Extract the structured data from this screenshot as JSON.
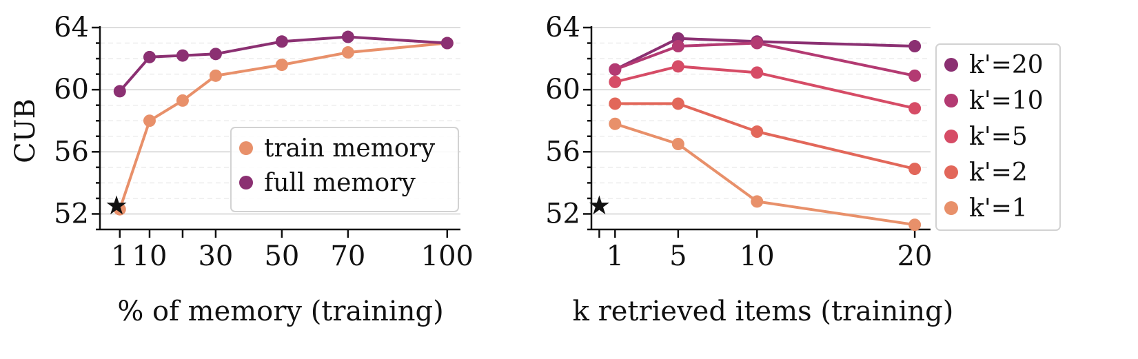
{
  "chart_data": [
    {
      "type": "line",
      "panel": "left",
      "title": "",
      "ylabel": "CUB",
      "xlabel": "% of memory (training)",
      "ylim": [
        51,
        64
      ],
      "yticks": [
        52,
        56,
        60,
        64
      ],
      "xlim": [
        -5,
        104
      ],
      "xticks": [
        1,
        10,
        20,
        30,
        50,
        70,
        100
      ],
      "xtick_labels": [
        "1",
        "10",
        "",
        "30",
        "50",
        "70",
        "100"
      ],
      "grid": true,
      "legend_position": "lower-right",
      "baseline_marker": {
        "symbol": "★",
        "x": 0,
        "y": 52.6
      },
      "series": [
        {
          "name": "train memory",
          "color": "#e8906a",
          "x": [
            1,
            10,
            20,
            30,
            50,
            70,
            100
          ],
          "y": [
            52.3,
            58.0,
            59.3,
            60.9,
            61.6,
            62.4,
            63.0
          ]
        },
        {
          "name": "full memory",
          "color": "#8b3072",
          "x": [
            1,
            10,
            20,
            30,
            50,
            70,
            100
          ],
          "y": [
            59.9,
            62.1,
            62.2,
            62.3,
            63.1,
            63.4,
            63.0
          ]
        }
      ]
    },
    {
      "type": "line",
      "panel": "right",
      "title": "",
      "ylabel": "",
      "xlabel": "k retrieved items (training)",
      "ylim": [
        51,
        64
      ],
      "yticks": [
        52,
        56,
        60,
        64
      ],
      "xlim": [
        -0.5,
        21
      ],
      "xticks": [
        0,
        1,
        5,
        10,
        20
      ],
      "xtick_labels": [
        "",
        "1",
        "5",
        "10",
        "20"
      ],
      "grid": true,
      "legend_position": "outside-right",
      "baseline_marker": {
        "symbol": "★",
        "x": 0,
        "y": 52.6
      },
      "series": [
        {
          "name": "k'=20",
          "color": "#8b3072",
          "x": [
            1,
            5,
            10,
            20
          ],
          "y": [
            61.3,
            63.3,
            63.1,
            62.8
          ]
        },
        {
          "name": "k'=10",
          "color": "#b33a72",
          "x": [
            1,
            5,
            10,
            20
          ],
          "y": [
            61.3,
            62.8,
            63.0,
            60.9
          ]
        },
        {
          "name": "k'=5",
          "color": "#d64c66",
          "x": [
            1,
            5,
            10,
            20
          ],
          "y": [
            60.5,
            61.5,
            61.1,
            58.8
          ]
        },
        {
          "name": "k'=2",
          "color": "#e2675a",
          "x": [
            1,
            5,
            10,
            20
          ],
          "y": [
            59.1,
            59.1,
            57.3,
            54.9
          ]
        },
        {
          "name": "k'=1",
          "color": "#e8906a",
          "x": [
            1,
            5,
            10,
            20
          ],
          "y": [
            57.8,
            56.5,
            52.8,
            51.3
          ]
        }
      ]
    }
  ]
}
